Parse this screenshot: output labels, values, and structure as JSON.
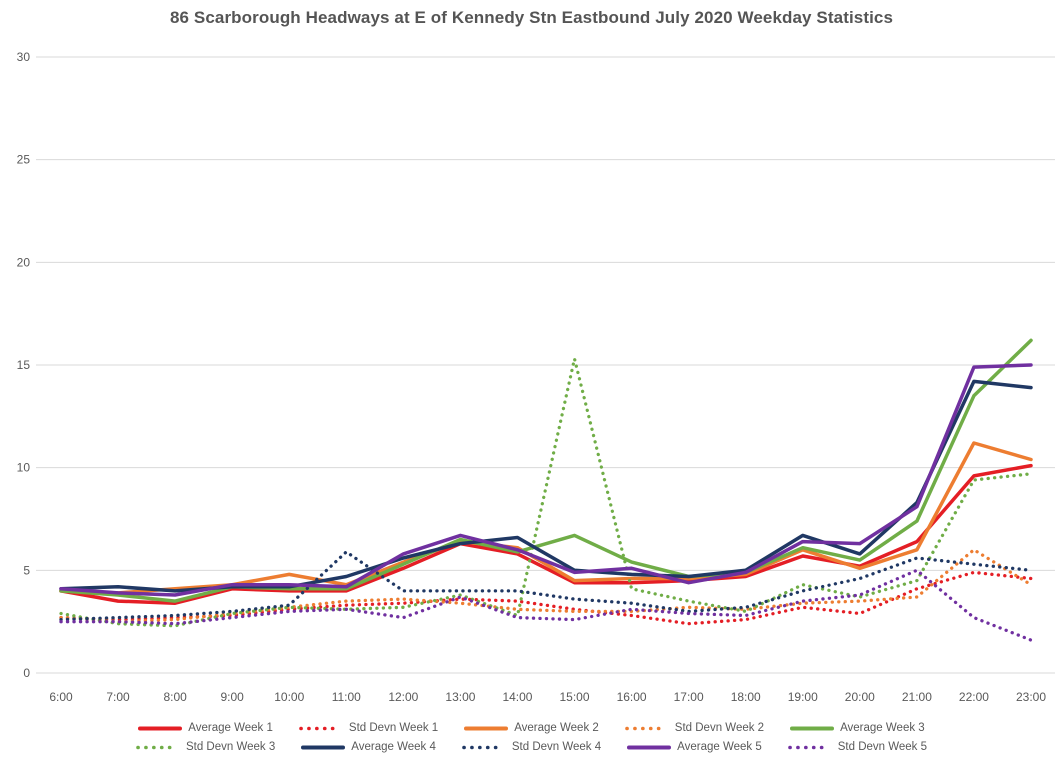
{
  "title": "86 Scarborough Headways at E of Kennedy Stn Eastbound July 2020 Weekday Statistics",
  "colors": {
    "red": "#E41E25",
    "orange": "#ED7D31",
    "green": "#70AD47",
    "navy": "#203864",
    "purple": "#7030A0",
    "gridline": "#D9D9D9",
    "axis_text": "#595959",
    "title_text": "#555555",
    "background": "#FFFFFF"
  },
  "chart_data": {
    "type": "line",
    "title": "86 Scarborough Headways at E of Kennedy Stn Eastbound July 2020 Weekday Statistics",
    "xlabel": "",
    "ylabel": "",
    "x": [
      "6:00",
      "7:00",
      "8:00",
      "9:00",
      "10:00",
      "11:00",
      "12:00",
      "13:00",
      "14:00",
      "15:00",
      "16:00",
      "17:00",
      "18:00",
      "19:00",
      "20:00",
      "21:00",
      "22:00",
      "23:00"
    ],
    "ylim": [
      0,
      30
    ],
    "yticks": [
      0,
      5,
      10,
      15,
      20,
      25,
      30
    ],
    "grid": true,
    "legend_position": "bottom",
    "series": [
      {
        "name": "Average Week 1",
        "color": "#E41E25",
        "style": "solid",
        "values": [
          4.0,
          3.5,
          3.4,
          4.1,
          4.0,
          4.0,
          5.1,
          6.3,
          5.8,
          4.4,
          4.4,
          4.5,
          4.7,
          5.7,
          5.2,
          6.4,
          9.6,
          10.1
        ]
      },
      {
        "name": "Std Devn Week 1",
        "color": "#E41E25",
        "style": "dotted",
        "values": [
          2.7,
          2.6,
          2.7,
          2.8,
          3.1,
          3.3,
          3.4,
          3.6,
          3.5,
          3.1,
          2.8,
          2.4,
          2.6,
          3.2,
          2.9,
          4.1,
          4.9,
          4.6
        ]
      },
      {
        "name": "Average Week 2",
        "color": "#ED7D31",
        "style": "solid",
        "values": [
          4.0,
          3.9,
          4.1,
          4.3,
          4.8,
          4.3,
          5.4,
          6.4,
          6.1,
          4.5,
          4.6,
          4.6,
          4.8,
          6.0,
          5.1,
          6.0,
          11.2,
          10.4
        ]
      },
      {
        "name": "Std Devn Week 2",
        "color": "#ED7D31",
        "style": "dotted",
        "values": [
          2.7,
          2.5,
          2.6,
          2.9,
          3.2,
          3.5,
          3.6,
          3.4,
          3.1,
          3.0,
          3.0,
          3.2,
          3.1,
          3.4,
          3.5,
          3.7,
          6.0,
          4.3
        ]
      },
      {
        "name": "Average Week 3",
        "color": "#70AD47",
        "style": "solid",
        "values": [
          4.0,
          3.8,
          3.5,
          4.2,
          4.1,
          4.1,
          5.3,
          6.5,
          5.9,
          6.7,
          5.4,
          4.7,
          4.9,
          6.1,
          5.5,
          7.4,
          13.5,
          16.2
        ]
      },
      {
        "name": "Std Devn Week 3",
        "color": "#70AD47",
        "style": "dotted",
        "values": [
          2.9,
          2.4,
          2.3,
          2.9,
          3.2,
          3.1,
          3.2,
          3.8,
          2.8,
          15.3,
          4.1,
          3.5,
          3.0,
          4.3,
          3.7,
          4.5,
          9.4,
          9.7
        ]
      },
      {
        "name": "Average Week 4",
        "color": "#203864",
        "style": "solid",
        "values": [
          4.1,
          4.2,
          4.0,
          4.2,
          4.2,
          4.7,
          5.6,
          6.3,
          6.6,
          5.0,
          4.8,
          4.7,
          5.0,
          6.7,
          5.8,
          8.3,
          14.2,
          13.9
        ]
      },
      {
        "name": "Std Devn Week 4",
        "color": "#203864",
        "style": "dotted",
        "values": [
          2.6,
          2.7,
          2.8,
          3.0,
          3.3,
          5.9,
          4.0,
          4.0,
          4.0,
          3.6,
          3.4,
          3.0,
          3.2,
          4.0,
          4.6,
          5.6,
          5.3,
          5.0
        ]
      },
      {
        "name": "Average Week 5",
        "color": "#7030A0",
        "style": "solid",
        "values": [
          4.1,
          3.9,
          3.8,
          4.3,
          4.3,
          4.2,
          5.8,
          6.7,
          6.0,
          4.9,
          5.1,
          4.4,
          4.9,
          6.4,
          6.3,
          8.1,
          14.9,
          15.0
        ]
      },
      {
        "name": "Std Devn Week 5",
        "color": "#7030A0",
        "style": "dotted",
        "values": [
          2.5,
          2.5,
          2.4,
          2.7,
          3.0,
          3.1,
          2.7,
          3.7,
          2.7,
          2.6,
          3.1,
          2.9,
          2.8,
          3.5,
          3.8,
          5.0,
          2.7,
          1.6
        ]
      }
    ]
  },
  "legend": {
    "rows": [
      [
        0,
        1,
        2,
        3,
        4
      ],
      [
        5,
        6,
        7,
        8,
        9
      ]
    ]
  }
}
